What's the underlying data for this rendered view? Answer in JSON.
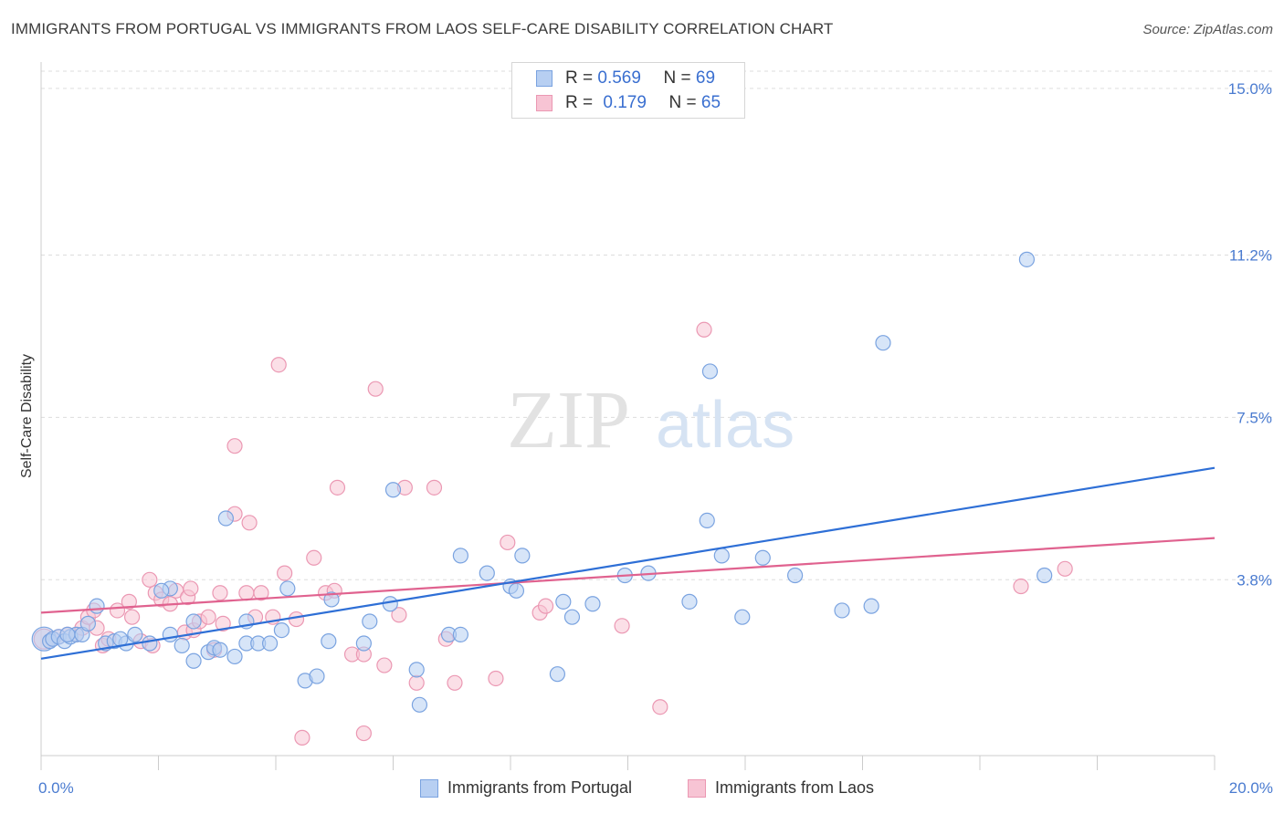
{
  "title": "IMMIGRANTS FROM PORTUGAL VS IMMIGRANTS FROM LAOS SELF-CARE DISABILITY CORRELATION CHART",
  "source": "Source: ZipAtlas.com",
  "watermark": {
    "zip": "ZIP",
    "atlas": "atlas"
  },
  "legend_top": {
    "portugal": {
      "r_label": "R =",
      "r_value": "0.569",
      "n_label": "N =",
      "n_value": "69"
    },
    "laos": {
      "r_label": "R =",
      "r_value": "0.179",
      "n_label": "N =",
      "n_value": "65"
    }
  },
  "legend_bottom": {
    "portugal": "Immigrants from Portugal",
    "laos": "Immigrants from Laos"
  },
  "colors": {
    "portugal_fill": "#b7cff2",
    "portugal_stroke": "#7aa3e0",
    "portugal_line": "#2e6fd6",
    "laos_fill": "#f7c4d4",
    "laos_stroke": "#eb98b3",
    "laos_line": "#e0628f",
    "tick_text": "#4a7bd0",
    "grid": "#dddddd"
  },
  "chart_data": {
    "type": "scatter",
    "xlabel": "",
    "ylabel": "Self-Care Disability",
    "xlim": [
      0,
      20
    ],
    "ylim": [
      0,
      15.6
    ],
    "x_tick_labels": [
      {
        "value": 0,
        "label": "0.0%"
      },
      {
        "value": 20,
        "label": "20.0%"
      }
    ],
    "y_tick_labels": [
      {
        "value": 3.8,
        "label": "3.8%"
      },
      {
        "value": 7.5,
        "label": "7.5%"
      },
      {
        "value": 11.2,
        "label": "11.2%"
      },
      {
        "value": 15.0,
        "label": "15.0%"
      }
    ],
    "grid": true,
    "series": [
      {
        "name": "Immigrants from Portugal",
        "trend": {
          "x0": 0,
          "y0": 2.0,
          "x1": 20,
          "y1": 6.35
        },
        "points": [
          [
            0.05,
            2.45
          ],
          [
            0.15,
            2.4
          ],
          [
            0.2,
            2.45
          ],
          [
            0.3,
            2.5
          ],
          [
            0.4,
            2.4
          ],
          [
            0.5,
            2.5
          ],
          [
            0.6,
            2.55
          ],
          [
            0.7,
            2.55
          ],
          [
            0.8,
            2.8
          ],
          [
            0.95,
            3.2
          ],
          [
            1.1,
            2.35
          ],
          [
            1.25,
            2.4
          ],
          [
            1.45,
            2.35
          ],
          [
            1.6,
            2.55
          ],
          [
            1.85,
            2.35
          ],
          [
            2.2,
            2.55
          ],
          [
            2.2,
            3.6
          ],
          [
            2.05,
            3.55
          ],
          [
            2.4,
            2.3
          ],
          [
            2.6,
            1.95
          ],
          [
            2.6,
            2.85
          ],
          [
            2.85,
            2.15
          ],
          [
            2.95,
            2.25
          ],
          [
            3.05,
            2.2
          ],
          [
            3.3,
            2.05
          ],
          [
            3.5,
            2.35
          ],
          [
            3.5,
            2.85
          ],
          [
            3.7,
            2.35
          ],
          [
            3.9,
            2.35
          ],
          [
            4.1,
            2.65
          ],
          [
            4.2,
            3.6
          ],
          [
            4.5,
            1.5
          ],
          [
            4.9,
            2.4
          ],
          [
            4.95,
            3.35
          ],
          [
            5.5,
            2.35
          ],
          [
            5.6,
            2.85
          ],
          [
            5.95,
            3.25
          ],
          [
            6.0,
            5.85
          ],
          [
            6.4,
            1.75
          ],
          [
            6.45,
            0.95
          ],
          [
            6.95,
            2.55
          ],
          [
            7.15,
            2.55
          ],
          [
            7.15,
            4.35
          ],
          [
            7.6,
            3.95
          ],
          [
            8.0,
            3.65
          ],
          [
            8.1,
            3.55
          ],
          [
            8.2,
            4.35
          ],
          [
            8.8,
            1.65
          ],
          [
            8.9,
            3.3
          ],
          [
            9.05,
            2.95
          ],
          [
            9.4,
            3.25
          ],
          [
            9.95,
            3.9
          ],
          [
            10.35,
            3.95
          ],
          [
            11.05,
            3.3
          ],
          [
            11.35,
            5.15
          ],
          [
            11.4,
            8.55
          ],
          [
            11.6,
            4.35
          ],
          [
            11.95,
            2.95
          ],
          [
            12.3,
            4.3
          ],
          [
            12.85,
            3.9
          ],
          [
            13.65,
            3.1
          ],
          [
            14.15,
            3.2
          ],
          [
            14.35,
            9.2
          ],
          [
            16.8,
            11.1
          ],
          [
            17.1,
            3.9
          ],
          [
            3.15,
            5.2
          ],
          [
            4.7,
            1.6
          ],
          [
            0.45,
            2.55
          ],
          [
            1.35,
            2.45
          ]
        ],
        "point_radii": [
          13
        ]
      },
      {
        "name": "Immigrants from Laos",
        "trend": {
          "x0": 0,
          "y0": 3.05,
          "x1": 20,
          "y1": 4.75
        },
        "points": [
          [
            0.05,
            2.45
          ],
          [
            0.2,
            2.45
          ],
          [
            0.3,
            2.5
          ],
          [
            0.45,
            2.55
          ],
          [
            0.6,
            2.55
          ],
          [
            0.7,
            2.7
          ],
          [
            0.8,
            2.95
          ],
          [
            0.95,
            2.7
          ],
          [
            1.05,
            2.3
          ],
          [
            1.15,
            2.45
          ],
          [
            1.3,
            3.1
          ],
          [
            1.5,
            3.3
          ],
          [
            1.55,
            2.95
          ],
          [
            1.7,
            2.4
          ],
          [
            1.85,
            3.8
          ],
          [
            1.95,
            3.5
          ],
          [
            2.05,
            3.35
          ],
          [
            2.2,
            3.25
          ],
          [
            2.3,
            3.55
          ],
          [
            2.45,
            2.6
          ],
          [
            2.5,
            3.4
          ],
          [
            2.55,
            3.6
          ],
          [
            2.6,
            2.65
          ],
          [
            2.7,
            2.85
          ],
          [
            2.85,
            2.95
          ],
          [
            2.95,
            2.2
          ],
          [
            3.05,
            3.5
          ],
          [
            3.1,
            2.8
          ],
          [
            3.3,
            6.85
          ],
          [
            3.3,
            5.3
          ],
          [
            3.5,
            3.5
          ],
          [
            3.65,
            2.95
          ],
          [
            3.75,
            3.5
          ],
          [
            3.55,
            5.1
          ],
          [
            3.95,
            2.95
          ],
          [
            4.05,
            8.7
          ],
          [
            4.15,
            3.95
          ],
          [
            4.35,
            2.9
          ],
          [
            4.45,
            0.2
          ],
          [
            4.65,
            4.3
          ],
          [
            4.85,
            3.5
          ],
          [
            5.0,
            3.55
          ],
          [
            5.05,
            5.9
          ],
          [
            5.3,
            2.1
          ],
          [
            5.5,
            0.3
          ],
          [
            5.5,
            2.1
          ],
          [
            5.7,
            8.15
          ],
          [
            5.85,
            1.85
          ],
          [
            6.1,
            3.0
          ],
          [
            6.2,
            5.9
          ],
          [
            6.4,
            1.45
          ],
          [
            6.7,
            5.9
          ],
          [
            6.9,
            2.45
          ],
          [
            7.05,
            1.45
          ],
          [
            7.75,
            1.55
          ],
          [
            7.95,
            4.65
          ],
          [
            8.5,
            3.05
          ],
          [
            8.6,
            3.2
          ],
          [
            9.9,
            2.75
          ],
          [
            10.55,
            0.9
          ],
          [
            11.3,
            9.5
          ],
          [
            16.7,
            3.65
          ],
          [
            17.45,
            4.05
          ],
          [
            1.9,
            2.3
          ],
          [
            0.9,
            3.1
          ]
        ],
        "point_radii": [
          11
        ]
      }
    ]
  }
}
